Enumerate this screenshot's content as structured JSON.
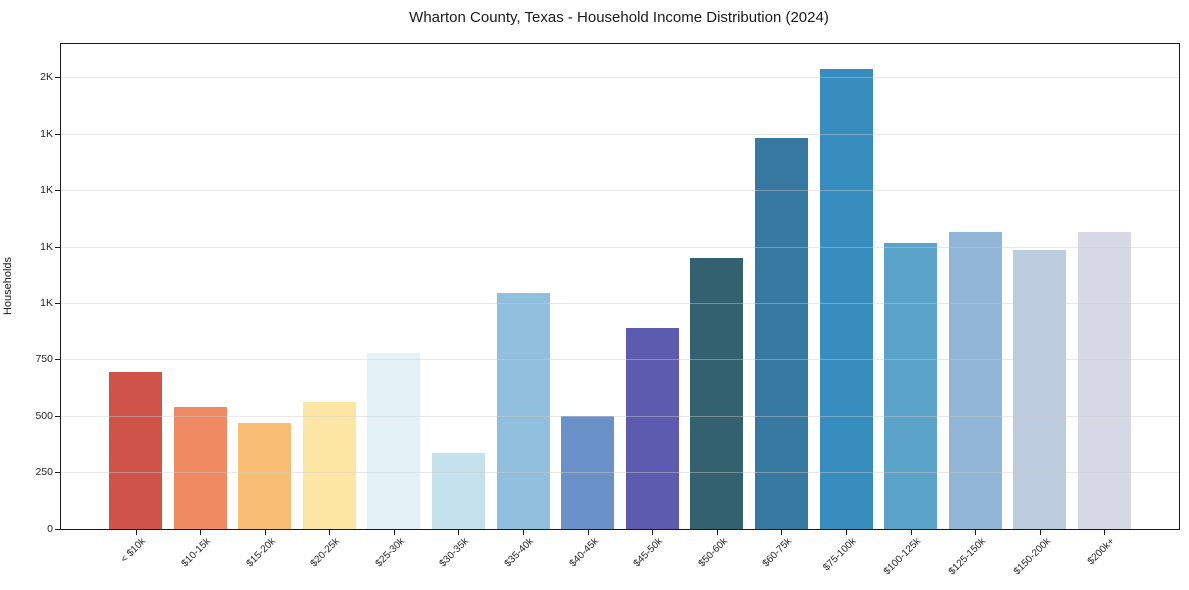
{
  "chart_data": {
    "type": "bar",
    "title": "Wharton County, Texas - Household Income Distribution (2024)",
    "xlabel": "",
    "ylabel": "Households",
    "categories": [
      "< $10k",
      "$10-15k",
      "$15-20k",
      "$20-25k",
      "$25-30k",
      "$30-35k",
      "$35-40k",
      "$40-45k",
      "$45-50k",
      "$50-60k",
      "$60-75k",
      "$75-100k",
      "$100-125k",
      "$125-150k",
      "$150-200k",
      "$200k+"
    ],
    "values": [
      695,
      540,
      470,
      565,
      780,
      335,
      1045,
      500,
      890,
      1200,
      1735,
      2040,
      1270,
      1315,
      1235,
      1315
    ],
    "bar_colors": [
      "#d0534a",
      "#f08a62",
      "#fabd74",
      "#fde5a4",
      "#e4f1f5",
      "#c5e1ed",
      "#90c0dd",
      "#6b92c8",
      "#5d5baf",
      "#34616f",
      "#36789f",
      "#358cbd",
      "#5ba3c9",
      "#90b5d6",
      "#bccbde",
      "#d6d8e6"
    ],
    "ylim": [
      0,
      2150
    ],
    "yticks": [
      {
        "value": 0,
        "label": "0"
      },
      {
        "value": 250,
        "label": "250"
      },
      {
        "value": 500,
        "label": "500"
      },
      {
        "value": 750,
        "label": "750"
      },
      {
        "value": 1000,
        "label": "1K"
      },
      {
        "value": 1250,
        "label": "1K"
      },
      {
        "value": 1500,
        "label": "1K"
      },
      {
        "value": 1750,
        "label": "1K"
      },
      {
        "value": 2000,
        "label": "2K"
      }
    ],
    "grid": true,
    "grid_axis": "y",
    "legend": "none",
    "xtick_rotation": 45,
    "axis_color": "#1a1a1a",
    "background_color": "#ffffff"
  }
}
